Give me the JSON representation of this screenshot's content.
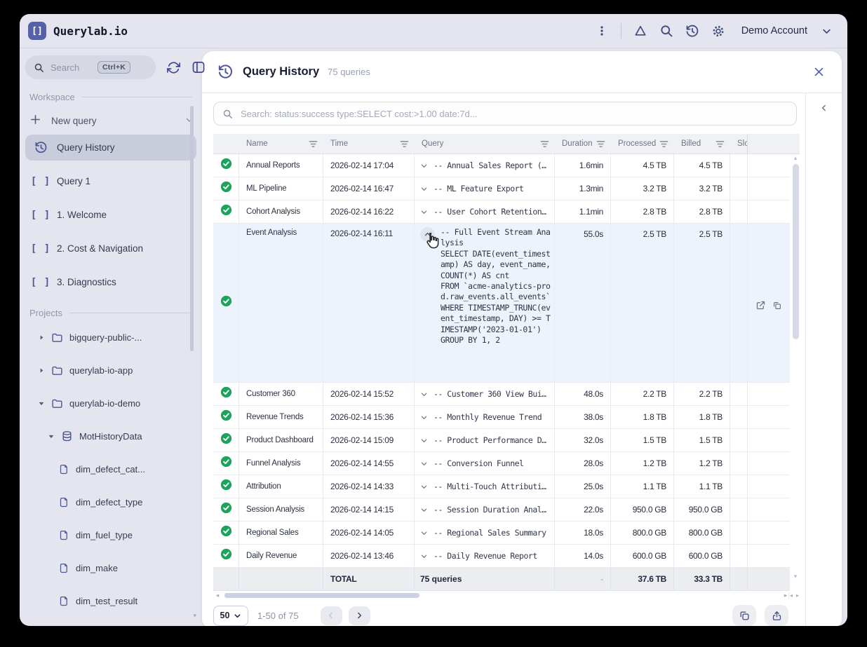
{
  "topbar": {
    "logo_glyph": "[]",
    "app_title": "Querylab.io",
    "account_label": "Demo Account"
  },
  "sidebar": {
    "search_placeholder": "Search",
    "search_shortcut": "Ctrl+K",
    "workspace_label": "Workspace",
    "projects_label": "Projects",
    "new_query_label": "New query",
    "items": [
      {
        "label": "Query History",
        "icon": "history",
        "active": true
      },
      {
        "label": "Query 1",
        "icon": "brackets",
        "active": false
      },
      {
        "label": "1. Welcome",
        "icon": "brackets",
        "active": false
      },
      {
        "label": "2. Cost & Navigation",
        "icon": "brackets",
        "active": false
      },
      {
        "label": "3. Diagnostics",
        "icon": "brackets",
        "active": false
      }
    ],
    "tree": [
      {
        "label": "bigquery-public-...",
        "icon": "folder",
        "chevron": "right",
        "depth": 0
      },
      {
        "label": "querylab-io-app",
        "icon": "folder",
        "chevron": "right",
        "depth": 0
      },
      {
        "label": "querylab-io-demo",
        "icon": "folder",
        "chevron": "down",
        "depth": 0
      },
      {
        "label": "MotHistoryData",
        "icon": "database",
        "chevron": "down",
        "depth": 1
      },
      {
        "label": "dim_defect_cat...",
        "icon": "file",
        "chevron": "none",
        "depth": 2
      },
      {
        "label": "dim_defect_type",
        "icon": "file",
        "chevron": "none",
        "depth": 2
      },
      {
        "label": "dim_fuel_type",
        "icon": "file",
        "chevron": "none",
        "depth": 2
      },
      {
        "label": "dim_make",
        "icon": "file",
        "chevron": "none",
        "depth": 2
      },
      {
        "label": "dim_test_result",
        "icon": "file",
        "chevron": "none",
        "depth": 2
      }
    ]
  },
  "panel": {
    "title": "Query History",
    "count_label": "75 queries",
    "search_placeholder": "Search: status:success type:SELECT cost:>1.00 date:7d...",
    "columns": [
      {
        "label": "Name",
        "filter": true
      },
      {
        "label": "Time",
        "filter": true
      },
      {
        "label": "Query",
        "filter": true
      },
      {
        "label": "Duration",
        "filter": true
      },
      {
        "label": "Processed",
        "filter": true
      },
      {
        "label": "Billed",
        "filter": true
      },
      {
        "label": "Slo",
        "filter": false
      }
    ]
  },
  "table": {
    "rows": [
      {
        "status": "success",
        "name": "Annual Reports",
        "time": "2026-02-14 17:04",
        "query": "-- Annual Sales Report (…",
        "duration": "1.6min",
        "processed": "4.5 TB",
        "billed": "4.5 TB",
        "expanded": false
      },
      {
        "status": "success",
        "name": "ML Pipeline",
        "time": "2026-02-14 16:47",
        "query": "-- ML Feature Export",
        "duration": "1.3min",
        "processed": "3.2 TB",
        "billed": "3.2 TB",
        "expanded": false
      },
      {
        "status": "success",
        "name": "Cohort Analysis",
        "time": "2026-02-14 16:22",
        "query": "-- User Cohort Retention…",
        "duration": "1.1min",
        "processed": "2.8 TB",
        "billed": "2.8 TB",
        "expanded": false
      },
      {
        "status": "success",
        "name": "Event Analysis",
        "time": "2026-02-14 16:11",
        "query": "-- Full Event Stream Analysis\nSELECT DATE(event_timestamp) AS day, event_name, COUNT(*) AS cnt\nFROM `acme-analytics-prod.raw_events.all_events`\nWHERE TIMESTAMP_TRUNC(event_timestamp, DAY) >= TIMESTAMP('2023-01-01')\nGROUP BY 1, 2",
        "duration": "55.0s",
        "processed": "2.5 TB",
        "billed": "2.5 TB",
        "expanded": true
      },
      {
        "status": "success",
        "name": "Customer 360",
        "time": "2026-02-14 15:52",
        "query": "-- Customer 360 View Bui…",
        "duration": "48.0s",
        "processed": "2.2 TB",
        "billed": "2.2 TB",
        "expanded": false
      },
      {
        "status": "success",
        "name": "Revenue Trends",
        "time": "2026-02-14 15:36",
        "query": "-- Monthly Revenue Trend",
        "duration": "38.0s",
        "processed": "1.8 TB",
        "billed": "1.8 TB",
        "expanded": false
      },
      {
        "status": "success",
        "name": "Product Dashboard",
        "time": "2026-02-14 15:09",
        "query": "-- Product Performance D…",
        "duration": "32.0s",
        "processed": "1.5 TB",
        "billed": "1.5 TB",
        "expanded": false
      },
      {
        "status": "success",
        "name": "Funnel Analysis",
        "time": "2026-02-14 14:55",
        "query": "-- Conversion Funnel",
        "duration": "28.0s",
        "processed": "1.2 TB",
        "billed": "1.2 TB",
        "expanded": false
      },
      {
        "status": "success",
        "name": "Attribution",
        "time": "2026-02-14 14:33",
        "query": "-- Multi-Touch Attributi…",
        "duration": "25.0s",
        "processed": "1.1 TB",
        "billed": "1.1 TB",
        "expanded": false
      },
      {
        "status": "success",
        "name": "Session Analysis",
        "time": "2026-02-14 14:15",
        "query": "-- Session Duration Anal…",
        "duration": "22.0s",
        "processed": "950.0 GB",
        "billed": "950.0 GB",
        "expanded": false
      },
      {
        "status": "success",
        "name": "Regional Sales",
        "time": "2026-02-14 14:05",
        "query": "-- Regional Sales Summary",
        "duration": "18.0s",
        "processed": "800.0 GB",
        "billed": "800.0 GB",
        "expanded": false
      },
      {
        "status": "success",
        "name": "Daily Revenue",
        "time": "2026-02-14 13:46",
        "query": "-- Daily Revenue Report",
        "duration": "14.0s",
        "processed": "600.0 GB",
        "billed": "600.0 GB",
        "expanded": false
      }
    ],
    "total": {
      "label": "TOTAL",
      "queries": "75 queries",
      "duration": "-",
      "processed": "37.6 TB",
      "billed": "33.3 TB"
    }
  },
  "pagination": {
    "page_size": "50",
    "range_label": "1-50 of 75"
  },
  "colors": {
    "accent": "#5562a8",
    "success_green": "#1ca35c",
    "expanded_row_bg": "#edf3fc",
    "window_bg": "#e4e5ef"
  }
}
